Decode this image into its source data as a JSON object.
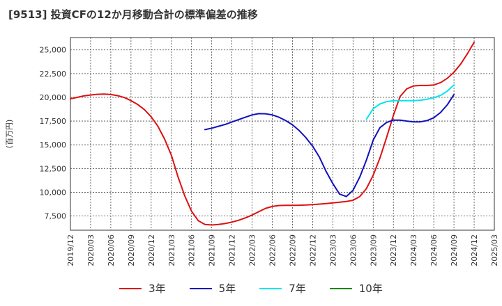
{
  "chart_data": {
    "type": "line",
    "title": "[9513]  投資CFの12か月移動合計の標準偏差の推移",
    "ylabel": "(百万円)",
    "ylim": [
      6000,
      26300
    ],
    "yticks": [
      "7,500",
      "10,000",
      "12,500",
      "15,000",
      "17,500",
      "20,000",
      "22,500",
      "25,000"
    ],
    "ytick_values": [
      7500,
      10000,
      12500,
      15000,
      17500,
      20000,
      22500,
      25000
    ],
    "xticks": [
      "2019/12",
      "2020/03",
      "2020/06",
      "2020/09",
      "2020/12",
      "2021/03",
      "2021/06",
      "2021/09",
      "2021/12",
      "2022/03",
      "2022/06",
      "2022/09",
      "2022/12",
      "2023/03",
      "2023/06",
      "2023/09",
      "2023/12",
      "2024/03",
      "2024/06",
      "2024/09",
      "2024/12",
      "2025/03"
    ],
    "grid": true,
    "legend_position": "bottom",
    "series": [
      {
        "name": "3年",
        "color": "#dd1111",
        "start": "2019/12",
        "values": [
          19850,
          20000,
          20150,
          20250,
          20320,
          20350,
          20300,
          20180,
          19980,
          19650,
          19250,
          18700,
          17950,
          16950,
          15600,
          13900,
          11600,
          9600,
          8000,
          7000,
          6600,
          6550,
          6600,
          6700,
          6850,
          7050,
          7300,
          7600,
          7950,
          8300,
          8500,
          8600,
          8620,
          8620,
          8630,
          8650,
          8700,
          8750,
          8800,
          8870,
          8950,
          9030,
          9150,
          9550,
          10400,
          11800,
          13600,
          15800,
          18100,
          20100,
          20900,
          21200,
          21250,
          21250,
          21300,
          21550,
          22000,
          22650,
          23500,
          24600,
          25800
        ]
      },
      {
        "name": "5年",
        "color": "#1111bb",
        "start": "2021/08",
        "values": [
          16600,
          16750,
          16950,
          17150,
          17400,
          17650,
          17900,
          18150,
          18280,
          18270,
          18150,
          17900,
          17550,
          17100,
          16500,
          15750,
          14850,
          13700,
          12200,
          10900,
          9800,
          9550,
          10200,
          11600,
          13400,
          15500,
          16800,
          17350,
          17600,
          17600,
          17500,
          17420,
          17420,
          17550,
          17850,
          18400,
          19200,
          20300
        ]
      },
      {
        "name": "7年",
        "color": "#00e5ee",
        "start": "2023/08",
        "values": [
          17700,
          18800,
          19300,
          19550,
          19650,
          19650,
          19650,
          19650,
          19700,
          19800,
          19950,
          20200,
          20650,
          21300
        ]
      },
      {
        "name": "10年",
        "color": "#118811",
        "start": "",
        "values": []
      }
    ]
  }
}
